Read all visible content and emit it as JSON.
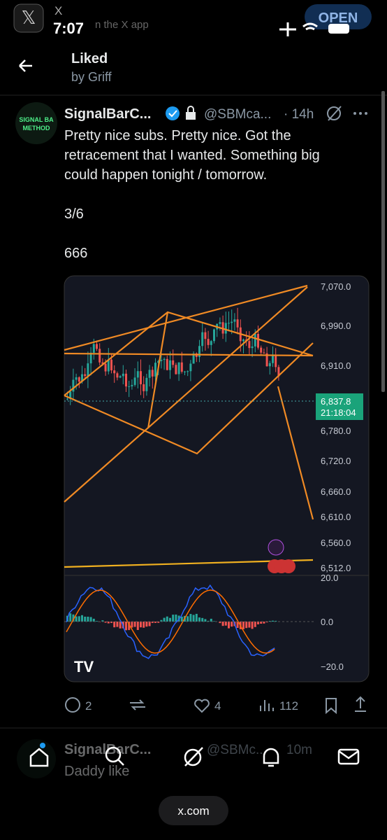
{
  "status_bar": {
    "app": "X",
    "time": "7:07",
    "banner": "n the X app",
    "open_button": "OPEN"
  },
  "header": {
    "title": "Liked",
    "subtitle": "by Griff"
  },
  "tweet": {
    "avatar_lines": [
      "SIGNAL BA",
      "METHOD"
    ],
    "name": "SignalBarC...",
    "handle": "@SBMca...",
    "time": "· 14h",
    "text_lines": [
      "Pretty nice subs.  Pretty nice. Got the",
      "retracement that I wanted. Something big",
      "could happen tonight / tomorrow."
    ],
    "text_extra": [
      "3/6",
      "666"
    ],
    "media": {
      "price_labels": [
        "7,070.0",
        "6,990.0",
        "6,910.0",
        "6,780.0",
        "6,720.0",
        "6,660.0",
        "6,610.0",
        "6,560.0",
        "6,512.0"
      ],
      "current_price": "6,837.8",
      "countdown": "21:18:04",
      "oscillator_labels": [
        "20.0",
        "0.0",
        "−20.0"
      ]
    },
    "actions": {
      "replies": "2",
      "likes": "4",
      "views": "112"
    }
  },
  "next_tweet": {
    "name": "SignalBarC...",
    "handle": "@SBMc...",
    "time": "10m",
    "text": "Daddy like"
  },
  "browser": {
    "url": "x.com"
  }
}
